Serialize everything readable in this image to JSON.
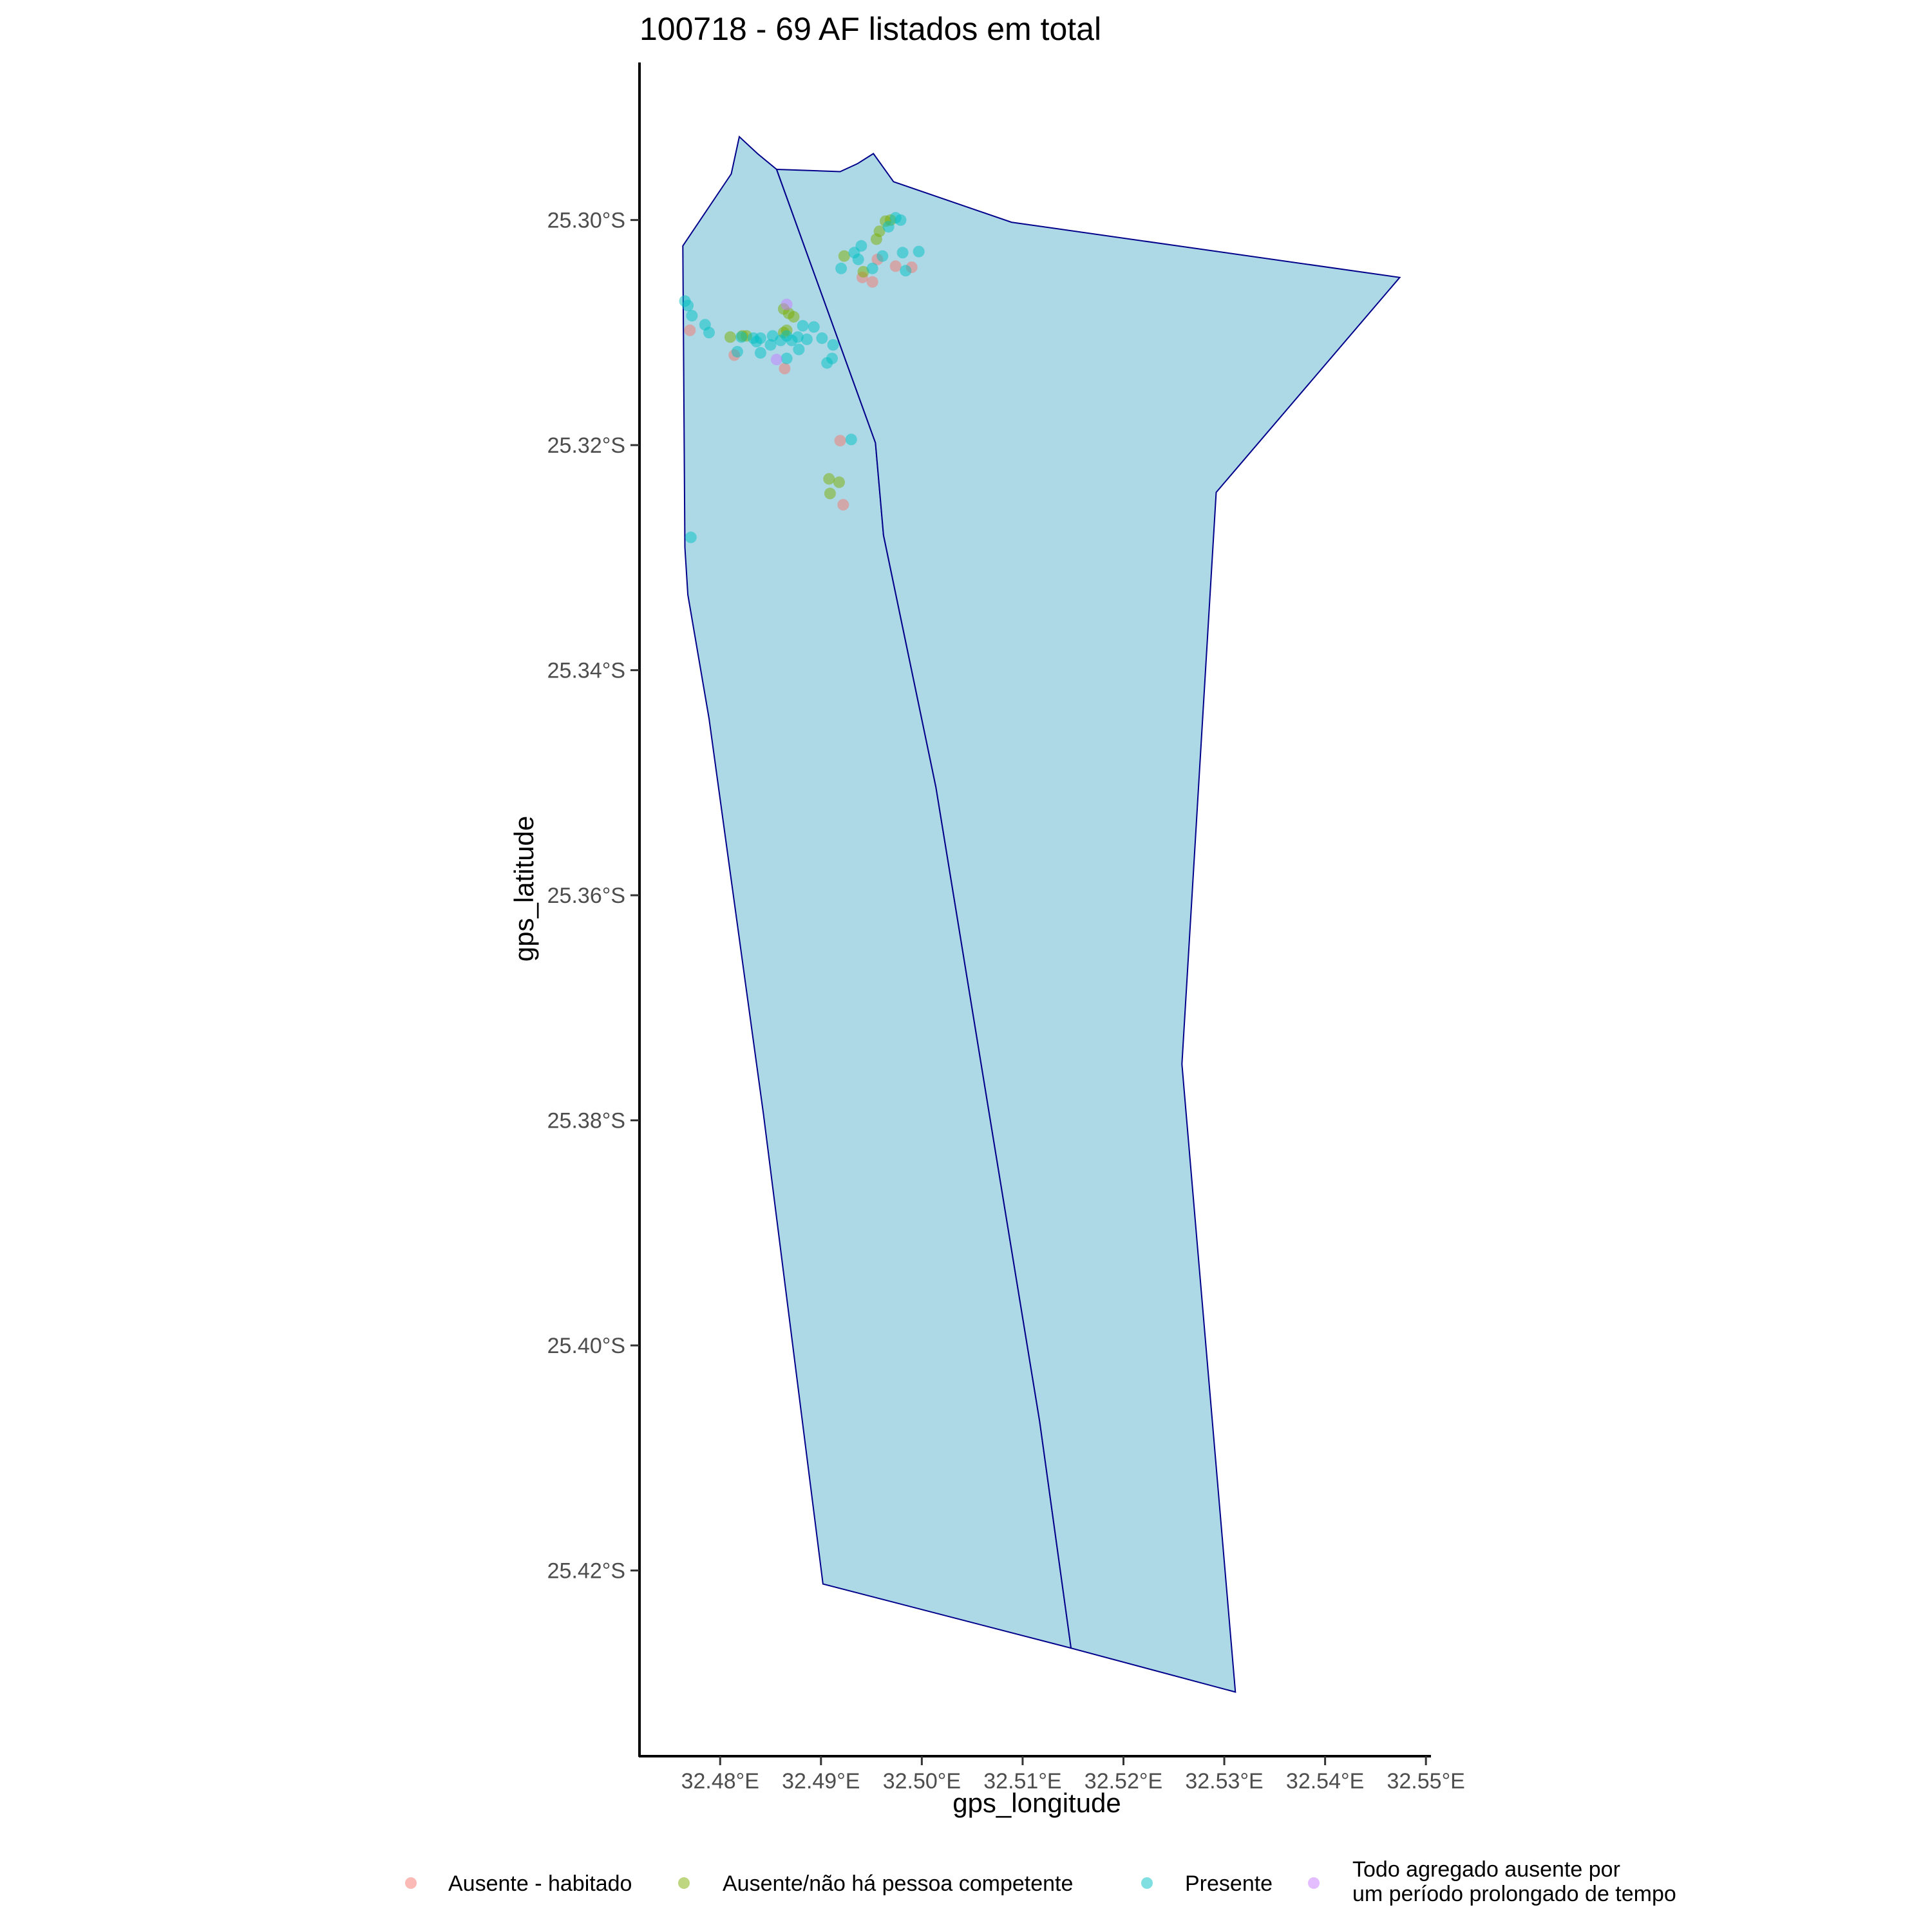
{
  "title": "100718 - 69 AF listados em total",
  "chart_data": {
    "type": "scatter",
    "title": "100718 - 69 AF listados em total",
    "xlabel": "gps_longitude",
    "ylabel": "gps_latitude",
    "xlim": [
      32.472,
      32.5505
    ],
    "ylim": [
      -25.4365,
      -25.286
    ],
    "x_ticks": [
      32.48,
      32.49,
      32.5,
      32.51,
      32.52,
      32.53,
      32.54,
      32.55
    ],
    "x_tick_labels": [
      "32.48°E",
      "32.49°E",
      "32.50°E",
      "32.51°E",
      "32.52°E",
      "32.53°E",
      "32.54°E",
      "32.55°E"
    ],
    "y_ticks": [
      -25.3,
      -25.32,
      -25.34,
      -25.36,
      -25.38,
      -25.4,
      -25.42
    ],
    "y_tick_labels": [
      "25.30°S",
      "25.32°S",
      "25.34°S",
      "25.36°S",
      "25.38°S",
      "25.40°S",
      "25.42°S"
    ],
    "grid": false,
    "legend_position": "bottom",
    "polygon_fill": "#add8e6",
    "polygon_stroke": "#00008b",
    "polygons": [
      {
        "coords": [
          [
            32.4819,
            -25.2926
          ],
          [
            32.4837,
            -25.2941
          ],
          [
            32.4856,
            -25.2955
          ],
          [
            32.4889,
            -25.3037
          ],
          [
            32.4954,
            -25.3198
          ],
          [
            32.4962,
            -25.328
          ],
          [
            32.5014,
            -25.3504
          ],
          [
            32.5068,
            -25.38
          ],
          [
            32.5117,
            -25.4068
          ],
          [
            32.5148,
            -25.4269
          ],
          [
            32.4902,
            -25.4212
          ],
          [
            32.4843,
            -25.3795
          ],
          [
            32.4789,
            -25.3443
          ],
          [
            32.4768,
            -25.3333
          ],
          [
            32.4765,
            -25.3291
          ],
          [
            32.4763,
            -25.3023
          ],
          [
            32.4811,
            -25.2959
          ]
        ]
      },
      {
        "coords": [
          [
            32.4856,
            -25.2955
          ],
          [
            32.4919,
            -25.2957
          ],
          [
            32.4936,
            -25.295
          ],
          [
            32.4952,
            -25.2941
          ],
          [
            32.4972,
            -25.2966
          ],
          [
            32.5089,
            -25.3002
          ],
          [
            32.5474,
            -25.3051
          ],
          [
            32.5292,
            -25.3242
          ],
          [
            32.5258,
            -25.375
          ],
          [
            32.5311,
            -25.4308
          ],
          [
            32.5148,
            -25.4269
          ],
          [
            32.5117,
            -25.4068
          ],
          [
            32.5068,
            -25.38
          ],
          [
            32.5014,
            -25.3504
          ],
          [
            32.4962,
            -25.328
          ],
          [
            32.4954,
            -25.3198
          ],
          [
            32.4889,
            -25.3037
          ]
        ]
      }
    ],
    "categories": [
      "Ausente - habitado",
      "Ausente/não há pessoa competente",
      "Presente",
      "Todo agregado ausente por um período prolongado de tempo"
    ],
    "legend_labels": [
      [
        "Ausente - habitado"
      ],
      [
        "Ausente/não há pessoa competente"
      ],
      [
        "Presente"
      ],
      [
        "Todo agregado ausente por",
        "um período prolongado de tempo"
      ]
    ],
    "colors": [
      "#F8766D",
      "#7CAE00",
      "#00BFC4",
      "#C77CFF"
    ],
    "point_opacity": 0.5,
    "series": [
      {
        "name": "Ausente - habitado",
        "points": [
          [
            32.477,
            -25.3098
          ],
          [
            32.4814,
            -25.312
          ],
          [
            32.4864,
            -25.3132
          ],
          [
            32.4919,
            -25.3196
          ],
          [
            32.4922,
            -25.3253
          ],
          [
            32.4941,
            -25.3051
          ],
          [
            32.4951,
            -25.3055
          ],
          [
            32.4956,
            -25.3035
          ],
          [
            32.4974,
            -25.3041
          ],
          [
            32.499,
            -25.3042
          ]
        ]
      },
      {
        "name": "Ausente/não há pessoa competente",
        "points": [
          [
            32.481,
            -25.3104
          ],
          [
            32.4822,
            -25.3103
          ],
          [
            32.4826,
            -25.3103
          ],
          [
            32.4863,
            -25.31
          ],
          [
            32.4866,
            -25.3098
          ],
          [
            32.4868,
            -25.3083
          ],
          [
            32.4873,
            -25.3086
          ],
          [
            32.4863,
            -25.3079
          ],
          [
            32.4908,
            -25.323
          ],
          [
            32.4918,
            -25.3233
          ],
          [
            32.4909,
            -25.3243
          ],
          [
            32.4923,
            -25.3032
          ],
          [
            32.4942,
            -25.3046
          ],
          [
            32.4955,
            -25.3017
          ],
          [
            32.4958,
            -25.301
          ],
          [
            32.4964,
            -25.3001
          ],
          [
            32.4969,
            -25.3
          ]
        ]
      },
      {
        "name": "Presente",
        "points": [
          [
            32.4765,
            -25.3072
          ],
          [
            32.4768,
            -25.3076
          ],
          [
            32.4772,
            -25.3085
          ],
          [
            32.4785,
            -25.3093
          ],
          [
            32.4789,
            -25.31
          ],
          [
            32.4817,
            -25.3117
          ],
          [
            32.4821,
            -25.3104
          ],
          [
            32.4833,
            -25.3105
          ],
          [
            32.4836,
            -25.3108
          ],
          [
            32.484,
            -25.3105
          ],
          [
            32.484,
            -25.3118
          ],
          [
            32.485,
            -25.3111
          ],
          [
            32.4852,
            -25.3103
          ],
          [
            32.486,
            -25.3107
          ],
          [
            32.4866,
            -25.3103
          ],
          [
            32.4871,
            -25.3107
          ],
          [
            32.4866,
            -25.3123
          ],
          [
            32.4877,
            -25.3104
          ],
          [
            32.4878,
            -25.3115
          ],
          [
            32.4882,
            -25.3094
          ],
          [
            32.4886,
            -25.3106
          ],
          [
            32.4893,
            -25.3095
          ],
          [
            32.4901,
            -25.3105
          ],
          [
            32.4906,
            -25.3127
          ],
          [
            32.4911,
            -25.3123
          ],
          [
            32.4912,
            -25.3111
          ],
          [
            32.4771,
            -25.3282
          ],
          [
            32.493,
            -25.3195
          ],
          [
            32.492,
            -25.3043
          ],
          [
            32.4933,
            -25.3029
          ],
          [
            32.4937,
            -25.3035
          ],
          [
            32.494,
            -25.3023
          ],
          [
            32.4951,
            -25.3043
          ],
          [
            32.4961,
            -25.3032
          ],
          [
            32.4967,
            -25.3006
          ],
          [
            32.4974,
            -25.2998
          ],
          [
            32.4979,
            -25.3
          ],
          [
            32.4981,
            -25.3029
          ],
          [
            32.4984,
            -25.3045
          ],
          [
            32.4997,
            -25.3028
          ]
        ]
      },
      {
        "name": "Todo agregado ausente por um período prolongado de tempo",
        "points": [
          [
            32.4856,
            -25.3124
          ],
          [
            32.4866,
            -25.3075
          ]
        ]
      }
    ]
  }
}
